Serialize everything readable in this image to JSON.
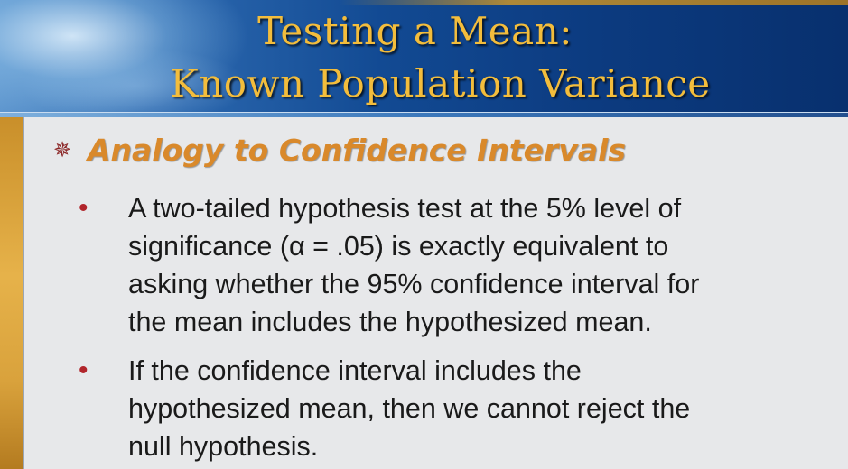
{
  "slide": {
    "title_lines": [
      "Testing a Mean:",
      "Known Population Variance"
    ],
    "heading": "Analogy to Confidence Intervals",
    "heading_bullet": "✵",
    "sub_bullet": "•",
    "items": [
      {
        "lines": [
          "A two-tailed hypothesis test at the 5% level of",
          "significance (α = .05) is exactly equivalent to",
          "asking whether the 95% confidence interval for",
          "the mean includes the hypothesized mean."
        ]
      },
      {
        "lines": [
          "If the confidence interval includes the",
          "hypothesized mean, then we cannot reject the",
          "null hypothesis."
        ]
      }
    ]
  },
  "colors": {
    "title": "#f3bd3c",
    "heading": "#d9892b",
    "bullet": "#b1252b",
    "panel": "#e7e8ea",
    "header": "#0c3b80"
  },
  "icons": {
    "heading_bullet": "asterisk-bullet-icon",
    "sub_bullet": "dot-bullet-icon"
  }
}
